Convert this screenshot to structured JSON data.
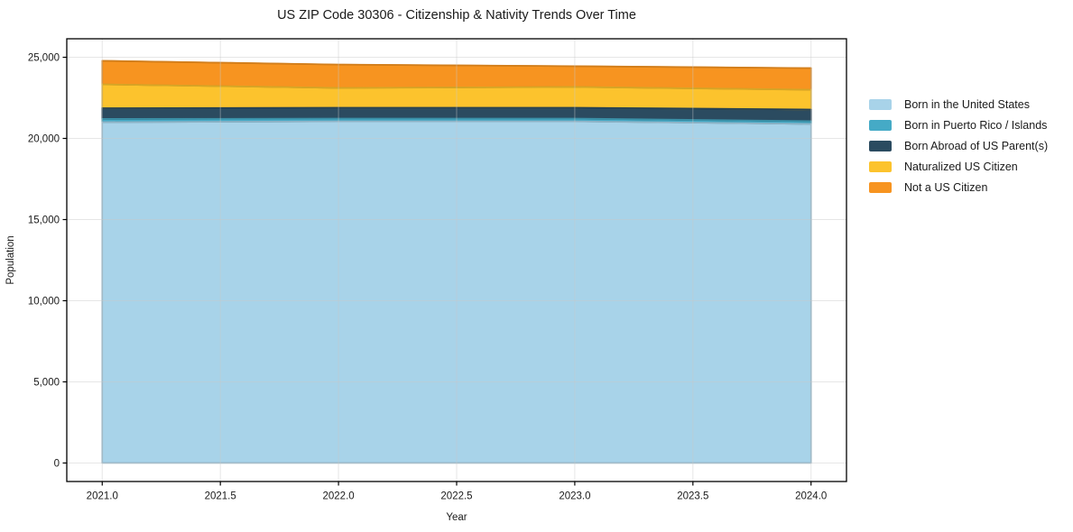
{
  "title": "US ZIP Code 30306 - Citizenship & Nativity Trends Over Time",
  "axes": {
    "xlabel": "Year",
    "ylabel": "Population"
  },
  "colors": {
    "text": "#1a1a1a",
    "spine": "#000000",
    "grid": "#c8c8c8"
  },
  "chart_data": {
    "type": "area",
    "stacked": true,
    "title": "US ZIP Code 30306 - Citizenship & Nativity Trends Over Time",
    "xlabel": "Year",
    "ylabel": "Population",
    "x": [
      2021,
      2022,
      2023,
      2024
    ],
    "series": [
      {
        "name": "Born in the United States",
        "color": "#a8d3e9",
        "values": [
          21000,
          21050,
          21050,
          20890
        ]
      },
      {
        "name": "Born in Puerto Rico / Islands",
        "color": "#45aac6",
        "values": [
          200,
          170,
          170,
          170
        ]
      },
      {
        "name": "Born Abroad of US Parent(s)",
        "color": "#2b4b60",
        "values": [
          660,
          670,
          670,
          720
        ]
      },
      {
        "name": "Naturalized US Citizen",
        "color": "#fcc32d",
        "values": [
          1470,
          1220,
          1280,
          1220
        ]
      },
      {
        "name": "Not a US Citizen",
        "color": "#f79420",
        "values": [
          1450,
          1440,
          1280,
          1330
        ]
      }
    ],
    "stacked_totals": [
      24780,
      24550,
      24450,
      24330
    ],
    "xtick_values": [
      2021.0,
      2021.5,
      2022.0,
      2022.5,
      2023.0,
      2023.5,
      2024.0
    ],
    "xtick_labels": [
      "2021.0",
      "2021.5",
      "2022.0",
      "2022.5",
      "2023.0",
      "2023.5",
      "2024.0"
    ],
    "ytick_values": [
      0,
      5000,
      10000,
      15000,
      20000,
      25000
    ],
    "ytick_labels": [
      "0",
      "5,000",
      "10,000",
      "15,000",
      "20,000",
      "25,000"
    ],
    "xlim": [
      2020.85,
      2024.15
    ],
    "ylim": [
      -1140,
      26140
    ],
    "grid": true,
    "legend_position": "right"
  }
}
